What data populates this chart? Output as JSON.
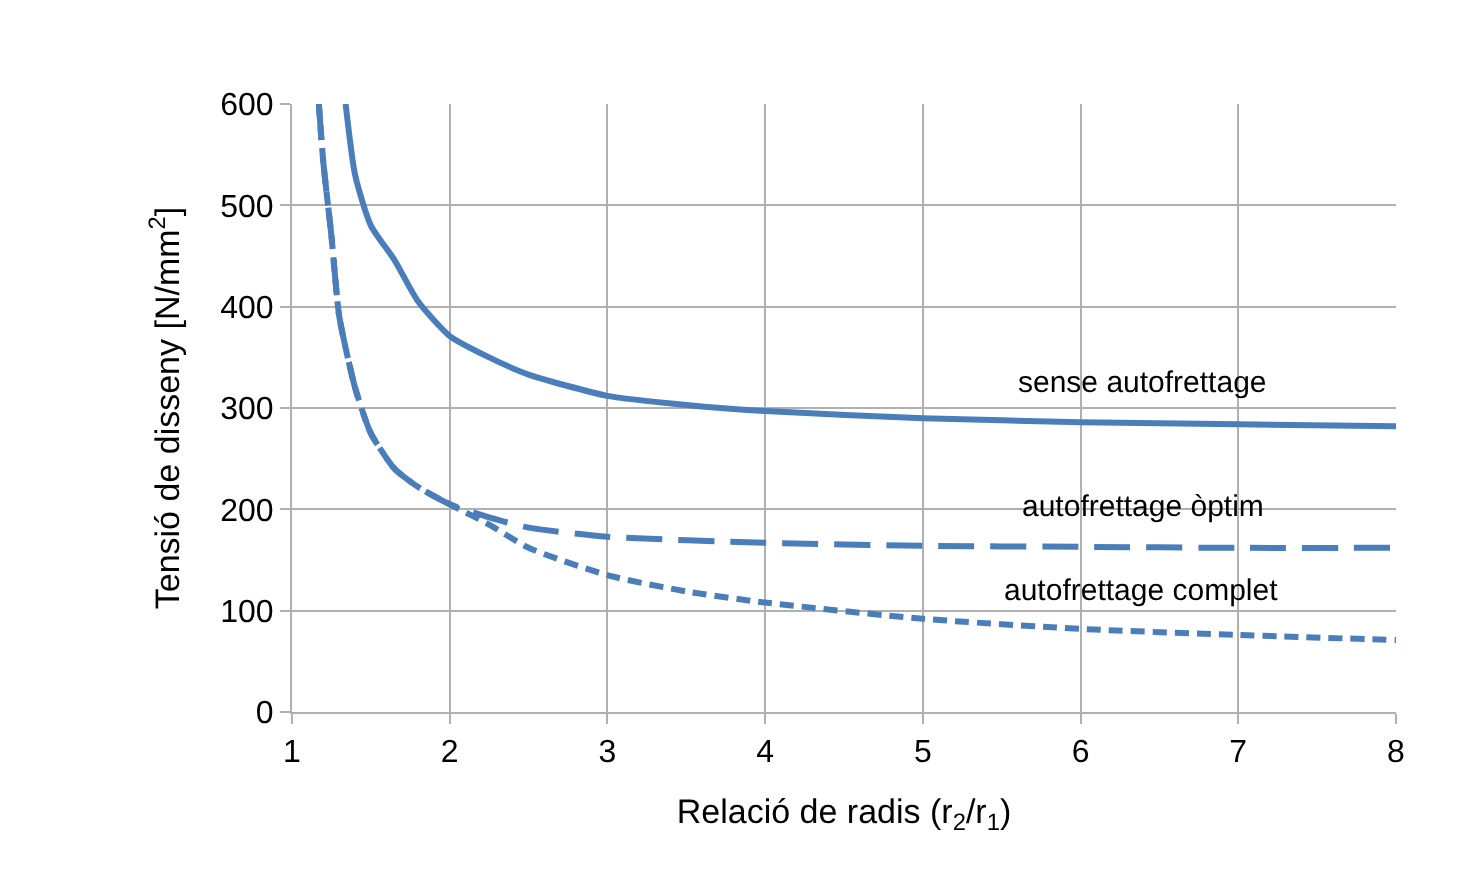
{
  "chart_data": {
    "type": "line",
    "xlabel": "Relació de radis (r$_{2}$/r$_{1}$)",
    "ylabel": "Tensió de disseny [N/mm$^{2}$]",
    "xlim": [
      1,
      8
    ],
    "ylim": [
      0,
      600
    ],
    "xticks": [
      1,
      2,
      3,
      4,
      5,
      6,
      7,
      8
    ],
    "yticks": [
      0,
      100,
      200,
      300,
      400,
      500,
      600
    ],
    "grid": true,
    "legend": false,
    "marker": "none",
    "series": [
      {
        "name": "sense autofrettage",
        "color": "#4a7ebb",
        "line_style": "solid",
        "x": [
          1.34,
          1.4,
          1.5,
          1.65,
          1.8,
          2,
          2.25,
          2.5,
          3,
          3.5,
          4,
          5,
          6,
          7,
          8
        ],
        "values": [
          600,
          530,
          480,
          446,
          405,
          371,
          350,
          333,
          312,
          303,
          297,
          290,
          286,
          284,
          282
        ]
      },
      {
        "name": "autofrettage òptim",
        "color": "#4a7ebb",
        "line_style": "dashed",
        "x": [
          1.17,
          1.2,
          1.25,
          1.3,
          1.4,
          1.5,
          1.65,
          1.8,
          2,
          2.25,
          2.5,
          3,
          4,
          5,
          6,
          7,
          8
        ],
        "values": [
          600,
          540,
          470,
          390,
          320,
          275,
          240,
          222,
          205,
          192,
          182,
          173,
          167,
          164,
          163,
          162,
          162
        ]
      },
      {
        "name": "autofrettage complet",
        "color": "#4a7ebb",
        "line_style": "dotted",
        "x": [
          1.17,
          1.2,
          1.25,
          1.3,
          1.4,
          1.5,
          1.65,
          1.8,
          2,
          2.25,
          2.5,
          3,
          3.5,
          4,
          5,
          6,
          7,
          8
        ],
        "values": [
          600,
          540,
          470,
          390,
          320,
          275,
          240,
          222,
          205,
          185,
          162,
          135,
          119,
          108,
          92,
          82,
          76,
          71
        ]
      }
    ]
  }
}
